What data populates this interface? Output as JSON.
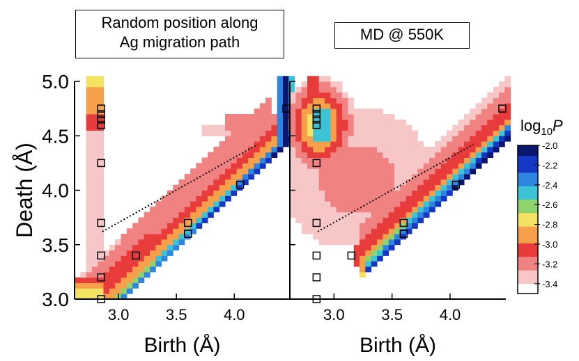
{
  "panels": {
    "left": {
      "title_lines": [
        "Random position along",
        "Ag migration path"
      ]
    },
    "right": {
      "title": "MD @ 550K"
    }
  },
  "chart_data": [
    {
      "type": "heatmap",
      "panel": "left",
      "title": "Random position along Ag migration path",
      "xlabel": "Birth (Å)",
      "ylabel": "Death (Å)",
      "xlim": [
        2.62,
        4.48
      ],
      "ylim": [
        3.0,
        5.0
      ],
      "xticks": [
        "3.0",
        "3.5",
        "4.0"
      ],
      "yticks": [
        "3.0",
        "3.5",
        "4.0",
        "4.5",
        "5.0"
      ],
      "markers": [
        [
          2.85,
          4.75
        ],
        [
          2.85,
          4.7
        ],
        [
          2.85,
          4.65
        ],
        [
          2.85,
          4.6
        ],
        [
          2.85,
          4.25
        ],
        [
          2.85,
          3.7
        ],
        [
          2.85,
          3.4
        ],
        [
          2.85,
          3.2
        ],
        [
          2.85,
          3.0
        ],
        [
          3.15,
          3.4
        ],
        [
          3.6,
          3.7
        ],
        [
          3.6,
          3.6
        ],
        [
          4.05,
          4.05
        ],
        [
          4.45,
          4.75
        ]
      ],
      "trend_line": [
        [
          2.86,
          3.62
        ],
        [
          4.2,
          4.42
        ]
      ]
    },
    {
      "type": "heatmap",
      "panel": "right",
      "title": "MD @ 550K",
      "xlabel": "Birth (Å)",
      "ylabel": "",
      "xlim": [
        2.62,
        4.48
      ],
      "ylim": [
        3.0,
        5.0
      ],
      "xticks": [
        "3.0",
        "3.5",
        "4.0"
      ],
      "markers": [
        [
          2.85,
          4.75
        ],
        [
          2.85,
          4.7
        ],
        [
          2.85,
          4.65
        ],
        [
          2.85,
          4.6
        ],
        [
          2.85,
          4.25
        ],
        [
          2.85,
          3.7
        ],
        [
          2.85,
          3.4
        ],
        [
          2.85,
          3.2
        ],
        [
          2.85,
          3.0
        ],
        [
          3.15,
          3.4
        ],
        [
          3.6,
          3.7
        ],
        [
          3.6,
          3.6
        ],
        [
          4.05,
          4.05
        ],
        [
          4.45,
          4.75
        ]
      ],
      "trend_line": [
        [
          2.86,
          3.62
        ],
        [
          4.2,
          4.42
        ]
      ]
    }
  ],
  "colorbar": {
    "title_base": "log",
    "title_sub": "10",
    "title_var": "P",
    "range": [
      -3.5,
      -2.0
    ],
    "ticks": [
      "-2.0",
      "-2.2",
      "-2.4",
      "-2.6",
      "-2.8",
      "-3.0",
      "-3.2",
      "-3.4"
    ],
    "tick_values": [
      -2.0,
      -2.2,
      -2.4,
      -2.6,
      -2.8,
      -3.0,
      -3.2,
      -3.4
    ]
  },
  "colors": {
    "c0": "#ffffff",
    "c1": "#f7c6c6",
    "c2": "#f08282",
    "c3": "#e83c3c",
    "c4": "#f6a04a",
    "c5": "#f4e262",
    "c6": "#8ed36e",
    "c7": "#3cc4d6",
    "c8": "#2e86e0",
    "c9": "#1636c4",
    "c10": "#0a1670"
  }
}
